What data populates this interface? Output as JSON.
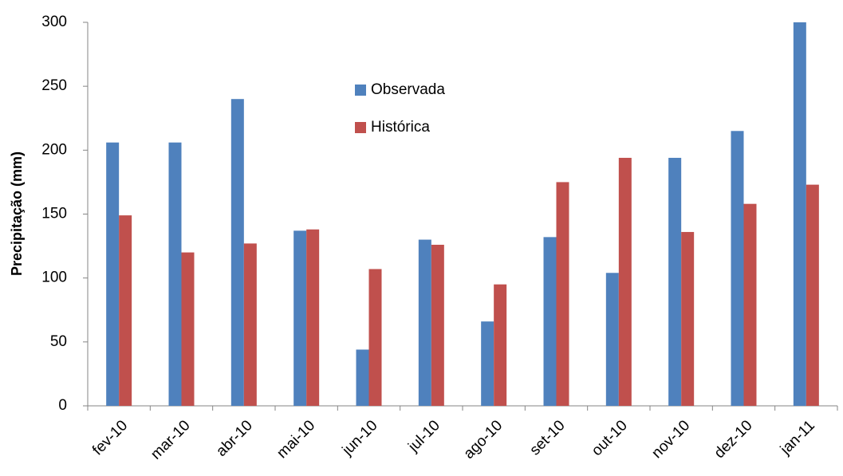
{
  "chart_data": {
    "type": "bar",
    "y_label": "Precipitação (mm)",
    "categories": [
      "fev-10",
      "mar-10",
      "abr-10",
      "mai-10",
      "jun-10",
      "jul-10",
      "ago-10",
      "set-10",
      "out-10",
      "nov-10",
      "dez-10",
      "jan-11"
    ],
    "series": [
      {
        "name": "Observada",
        "color": "#4f81bd",
        "values": [
          206,
          206,
          240,
          137,
          44,
          130,
          66,
          132,
          104,
          194,
          215,
          300
        ]
      },
      {
        "name": "Histórica",
        "color": "#c0504d",
        "values": [
          149,
          120,
          127,
          138,
          107,
          126,
          95,
          175,
          194,
          136,
          158,
          173
        ]
      }
    ],
    "ylim": [
      0,
      300
    ],
    "yticks": [
      0,
      50,
      100,
      150,
      200,
      250,
      300
    ],
    "grid": false
  }
}
